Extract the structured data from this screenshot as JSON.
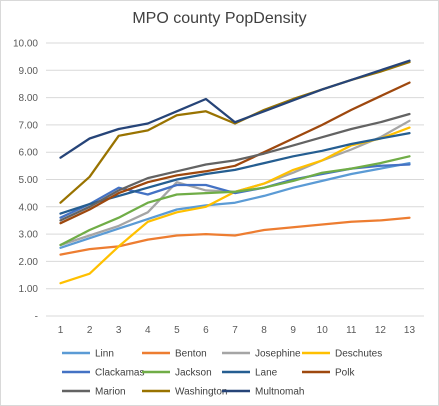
{
  "chart_data": {
    "type": "line",
    "title": "MPO county PopDensity",
    "xlabel": "",
    "ylabel": "",
    "x": [
      1,
      2,
      3,
      4,
      5,
      6,
      7,
      8,
      9,
      10,
      11,
      12,
      13
    ],
    "ylim": [
      0,
      10
    ],
    "yticks": [
      "-",
      "1.00",
      "2.00",
      "3.00",
      "4.00",
      "5.00",
      "6.00",
      "7.00",
      "8.00",
      "9.00",
      "10.00"
    ],
    "grid": "horizontal",
    "legend_position": "bottom",
    "series": [
      {
        "name": "Linn",
        "color": "#5b9bd5",
        "values": [
          2.5,
          2.85,
          3.2,
          3.55,
          3.9,
          4.05,
          4.15,
          4.4,
          4.7,
          4.95,
          5.2,
          5.4,
          5.6
        ]
      },
      {
        "name": "Benton",
        "color": "#ed7d31",
        "values": [
          2.25,
          2.45,
          2.55,
          2.8,
          2.95,
          3.0,
          2.95,
          3.15,
          3.25,
          3.35,
          3.45,
          3.5,
          3.6
        ]
      },
      {
        "name": "Josephine",
        "color": "#a5a5a5",
        "values": [
          2.6,
          2.95,
          3.3,
          3.8,
          4.9,
          4.6,
          4.55,
          4.85,
          5.25,
          5.7,
          6.1,
          6.55,
          7.15
        ]
      },
      {
        "name": "Deschutes",
        "color": "#ffc000",
        "values": [
          1.2,
          1.55,
          2.55,
          3.45,
          3.8,
          4.0,
          4.55,
          4.85,
          5.35,
          5.7,
          6.25,
          6.5,
          6.9
        ]
      },
      {
        "name": "Clackamas",
        "color": "#4472c4",
        "values": [
          3.6,
          4.1,
          4.7,
          4.45,
          4.8,
          4.8,
          4.5,
          4.7,
          5.0,
          5.2,
          5.4,
          5.5,
          5.55
        ]
      },
      {
        "name": "Jackson",
        "color": "#70ad47",
        "values": [
          2.6,
          3.15,
          3.6,
          4.15,
          4.45,
          4.5,
          4.55,
          4.7,
          4.95,
          5.25,
          5.4,
          5.6,
          5.85
        ]
      },
      {
        "name": "Lane",
        "color": "#255e91",
        "values": [
          3.75,
          4.1,
          4.4,
          4.7,
          5.0,
          5.2,
          5.35,
          5.6,
          5.85,
          6.05,
          6.3,
          6.5,
          6.7
        ]
      },
      {
        "name": "Polk",
        "color": "#9e480e",
        "values": [
          3.4,
          3.9,
          4.5,
          4.9,
          5.15,
          5.3,
          5.5,
          6.0,
          6.5,
          7.0,
          7.55,
          8.05,
          8.55
        ]
      },
      {
        "name": "Marion",
        "color": "#636363",
        "values": [
          3.5,
          4.0,
          4.6,
          5.05,
          5.3,
          5.55,
          5.7,
          5.95,
          6.25,
          6.55,
          6.85,
          7.1,
          7.4
        ]
      },
      {
        "name": "Washington",
        "color": "#997300",
        "values": [
          4.15,
          5.1,
          6.6,
          6.8,
          7.35,
          7.5,
          7.05,
          7.55,
          7.95,
          8.3,
          8.65,
          8.95,
          9.3
        ]
      },
      {
        "name": "Multnomah",
        "color": "#264478",
        "values": [
          5.8,
          6.5,
          6.85,
          7.05,
          7.5,
          7.95,
          7.1,
          7.5,
          7.9,
          8.3,
          8.65,
          9.0,
          9.35
        ]
      }
    ]
  }
}
